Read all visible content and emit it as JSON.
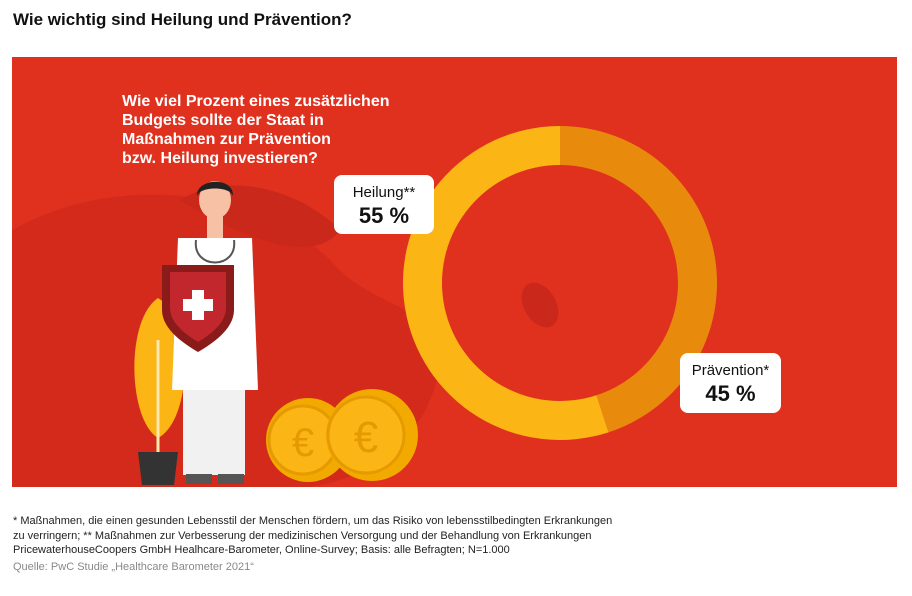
{
  "title": "Wie wichtig sind Heilung und Prävention?",
  "chart_data": {
    "type": "donut",
    "question_lines": [
      "Wie viel Prozent eines zusätzlichen",
      "Budgets sollte der Staat in",
      "Maßnahmen zur Prävention",
      "bzw. Heilung investieren?"
    ],
    "categories": [
      "Prävention*",
      "Heilung**"
    ],
    "values": [
      45,
      55
    ],
    "value_labels": [
      "45 %",
      "55 %"
    ],
    "colors": [
      "#e88a0c",
      "#fbb514"
    ]
  },
  "footnotes": [
    "* Maßnahmen, die einen gesunden Lebensstil der Menschen fördern, um das Risiko von lebensstilbedingten Erkrankungen",
    "zu verringern; ** Maßnahmen zur Verbesserung der medizinischen Versorgung und der Behandlung von Erkrankungen",
    "PricewaterhouseCoopers GmbH Healhcare-Barometer, Online-Survey; Basis: alle Befragten; N=1.000"
  ],
  "source": "Quelle: PwC Studie „Healthcare Barometer 2021“"
}
